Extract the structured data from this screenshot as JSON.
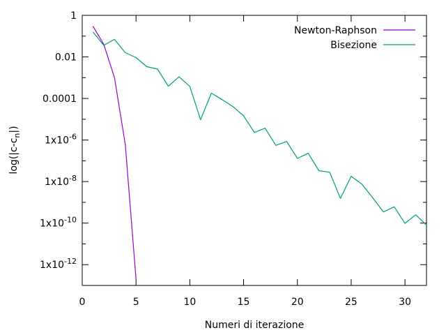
{
  "chart_data": {
    "type": "line",
    "xlabel": "Numeri di iterazione",
    "ylabel": "log(|c-c",
    "ylabel_subscript": "n",
    "ylabel_suffix": "|)",
    "xlim": [
      0,
      32
    ],
    "ylim": [
      1e-13,
      1
    ],
    "yscale": "log",
    "grid": false,
    "legend_position": "top-right",
    "x_ticks": [
      {
        "value": 0,
        "label": "0"
      },
      {
        "value": 5,
        "label": "5"
      },
      {
        "value": 10,
        "label": "10"
      },
      {
        "value": 15,
        "label": "15"
      },
      {
        "value": 20,
        "label": "20"
      },
      {
        "value": 25,
        "label": "25"
      },
      {
        "value": 30,
        "label": "30"
      }
    ],
    "y_ticks": [
      {
        "value": 1,
        "label": "1"
      },
      {
        "value": 0.01,
        "label": "0.01"
      },
      {
        "value": 0.0001,
        "label": "0.0001"
      },
      {
        "value": 1e-06,
        "label": "1x10",
        "exp": "-6"
      },
      {
        "value": 1e-08,
        "label": "1x10",
        "exp": "-8"
      },
      {
        "value": 1e-10,
        "label": "1x10",
        "exp": "-10"
      },
      {
        "value": 1e-12,
        "label": "1x10",
        "exp": "-12"
      }
    ],
    "series": [
      {
        "name": "Newton-Raphson",
        "color": "#9400d3",
        "x": [
          1,
          2,
          3,
          4,
          5
        ],
        "y": [
          0.3,
          0.04,
          0.001,
          6e-07,
          2e-13
        ]
      },
      {
        "name": "Bisezione",
        "color": "#009e73",
        "x": [
          1,
          2,
          3,
          4,
          5,
          6,
          7,
          8,
          9,
          10,
          11,
          12,
          13,
          14,
          15,
          16,
          17,
          18,
          19,
          20,
          21,
          22,
          23,
          24,
          25,
          26,
          27,
          28,
          29,
          30,
          31,
          32
        ],
        "y": [
          0.16,
          0.036,
          0.07,
          0.016,
          0.0093,
          0.0034,
          0.0026,
          0.00039,
          0.0011,
          0.00038,
          9.5e-06,
          0.00018,
          8.8e-05,
          4.1e-05,
          1.46e-05,
          2.3e-06,
          3.7e-06,
          5.5e-07,
          8.5e-07,
          1.3e-07,
          2.3e-07,
          3.35e-08,
          2.8e-08,
          1.55e-09,
          1.8e-08,
          7.5e-09,
          1.65e-09,
          3.45e-10,
          6.1e-10,
          9.7e-11,
          2.53e-10,
          8e-11
        ]
      }
    ]
  }
}
